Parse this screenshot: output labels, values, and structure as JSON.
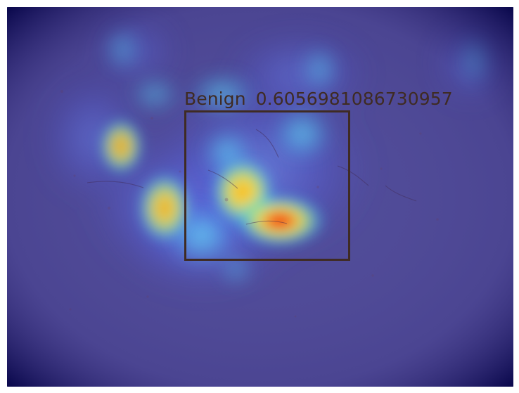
{
  "detection": {
    "label": "Benign",
    "score": "0.6056981086730957",
    "box_color": "#3f2b23"
  },
  "image": {
    "subject": "dermoscopy-skin-lesion",
    "overlay": "heatmap"
  },
  "colors": {
    "background": "#ffffff",
    "heatmap_base": "#3b3f8f",
    "heatmap_hot": "#ff2a00",
    "heatmap_warm": "#ffe34a",
    "heatmap_cool": "#4fe0ff",
    "box": "#3f2b23"
  }
}
